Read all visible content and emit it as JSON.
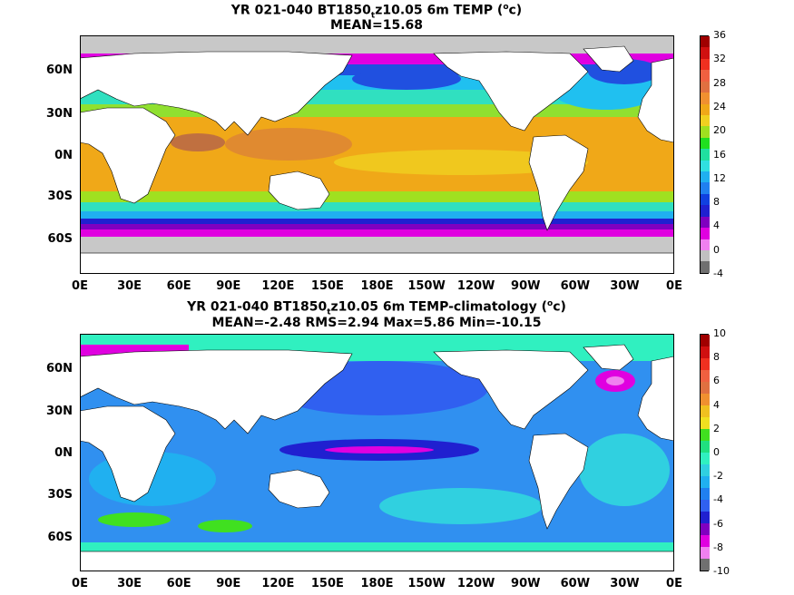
{
  "panels": [
    {
      "title_prefix": "YR 021-040 BT1850",
      "title_sub": "t",
      "title_mid": "z10.05 6m TEMP (",
      "title_sup": "o",
      "title_end": "c)",
      "stats": "MEAN=15.68",
      "yticks": [
        "60N",
        "30N",
        "0N",
        "30S",
        "60S"
      ],
      "xticks": [
        "0E",
        "30E",
        "60E",
        "90E",
        "120E",
        "150E",
        "180E",
        "150W",
        "120W",
        "90W",
        "60W",
        "30W",
        "0E"
      ],
      "colorbar": {
        "labels": [
          "36",
          "32",
          "28",
          "24",
          "20",
          "16",
          "12",
          "8",
          "4",
          "0",
          "-4"
        ],
        "colors": [
          "#a00000",
          "#d01010",
          "#f03020",
          "#f06040",
          "#e07040",
          "#f09030",
          "#f0a818",
          "#f0d020",
          "#a0e020",
          "#20e020",
          "#20e0a0",
          "#30e0e0",
          "#20b0f0",
          "#2080f0",
          "#1040e0",
          "#2020d0",
          "#8000c0",
          "#e000e0",
          "#f080f0",
          "#c0c0c0",
          "#707070"
        ]
      }
    },
    {
      "title_prefix": "YR 021-040 BT1850",
      "title_sub": "t",
      "title_mid": "z10.05 6m TEMP-climatology (",
      "title_sup": "o",
      "title_end": "c)",
      "stats": "MEAN=-2.48   RMS=2.94   Max=5.86   Min=-10.15",
      "yticks": [
        "60N",
        "30N",
        "0N",
        "30S",
        "60S"
      ],
      "xticks": [
        "0E",
        "30E",
        "60E",
        "90E",
        "120E",
        "150E",
        "180E",
        "150W",
        "120W",
        "90W",
        "60W",
        "30W",
        "0E"
      ],
      "colorbar": {
        "labels": [
          "10",
          "8",
          "6",
          "4",
          "2",
          "0",
          "-2",
          "-4",
          "-6",
          "-8",
          "-10"
        ],
        "colors": [
          "#a00000",
          "#d01010",
          "#f03020",
          "#f06040",
          "#e07040",
          "#f09030",
          "#f0c020",
          "#f0e020",
          "#40e020",
          "#20e080",
          "#30f0c0",
          "#30d0e0",
          "#20b0f0",
          "#2080f0",
          "#3060f0",
          "#2020d0",
          "#8000c0",
          "#e000e0",
          "#f080f0",
          "#707070"
        ]
      }
    }
  ]
}
